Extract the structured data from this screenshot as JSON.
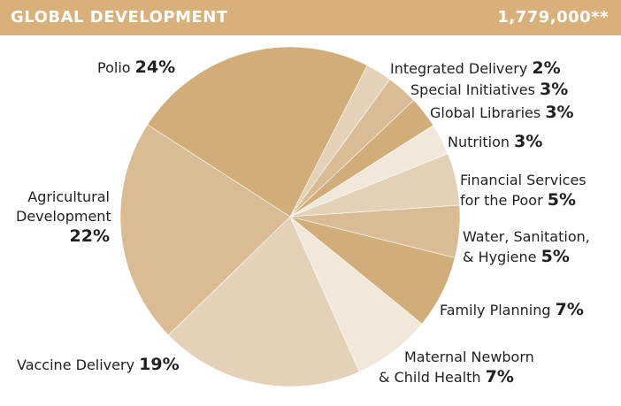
{
  "header": {
    "title": "GLOBAL DEVELOPMENT",
    "total": "1,779,000**",
    "color": "#d9b07a"
  },
  "chart_data": {
    "type": "pie",
    "title": "GLOBAL DEVELOPMENT",
    "total_label": "1,779,000**",
    "slices": [
      {
        "label": "Integrated Delivery",
        "pct_label": "2%",
        "value": 2.5,
        "color": "#e4d2b8"
      },
      {
        "label": "Special Initiatives",
        "pct_label": "3%",
        "value": 3,
        "color": "#d9bc93"
      },
      {
        "label": "Global Libraries",
        "pct_label": "3%",
        "value": 3,
        "color": "#d0ad79"
      },
      {
        "label": "Nutrition",
        "pct_label": "3%",
        "value": 3,
        "color": "#f2e8d9"
      },
      {
        "label": "Financial Services for the Poor",
        "pct_label": "5%",
        "value": 5,
        "color": "#e4d2b8"
      },
      {
        "label": "Water, Sanitation, & Hygiene",
        "pct_label": "5%",
        "value": 5,
        "color": "#d9bc93"
      },
      {
        "label": "Family Planning",
        "pct_label": "7%",
        "value": 7,
        "color": "#d0ad79"
      },
      {
        "label": "Maternal Newborn & Child Health",
        "pct_label": "7%",
        "value": 7.5,
        "color": "#f2e8d9"
      },
      {
        "label": "Vaccine Delivery",
        "pct_label": "19%",
        "value": 19.5,
        "color": "#e4d2b8"
      },
      {
        "label": "Agricultural Development",
        "pct_label": "22%",
        "value": 21.5,
        "color": "#d9bc93"
      },
      {
        "label": "Polio",
        "pct_label": "24%",
        "value": 23.5,
        "color": "#d0ad79"
      }
    ]
  },
  "labels": {
    "integrated": {
      "name": "Integrated Delivery",
      "pct": "2%"
    },
    "special": {
      "name": "Special Initiatives",
      "pct": "3%"
    },
    "libraries": {
      "name": "Global Libraries",
      "pct": "3%"
    },
    "nutrition": {
      "name": "Nutrition",
      "pct": "3%"
    },
    "financial": {
      "line1": "Financial Services",
      "line2": "for the Poor",
      "pct": "5%"
    },
    "water": {
      "line1": "Water, Sanitation,",
      "line2": "& Hygiene",
      "pct": "5%"
    },
    "family": {
      "name": "Family Planning",
      "pct": "7%"
    },
    "maternal": {
      "line1": "Maternal Newborn",
      "line2": "& Child Health",
      "pct": "7%"
    },
    "vaccine": {
      "name": "Vaccine Delivery",
      "pct": "19%"
    },
    "agri": {
      "line1": "Agricultural",
      "line2": "Development",
      "pct": "22%"
    },
    "polio": {
      "name": "Polio",
      "pct": "24%"
    }
  }
}
